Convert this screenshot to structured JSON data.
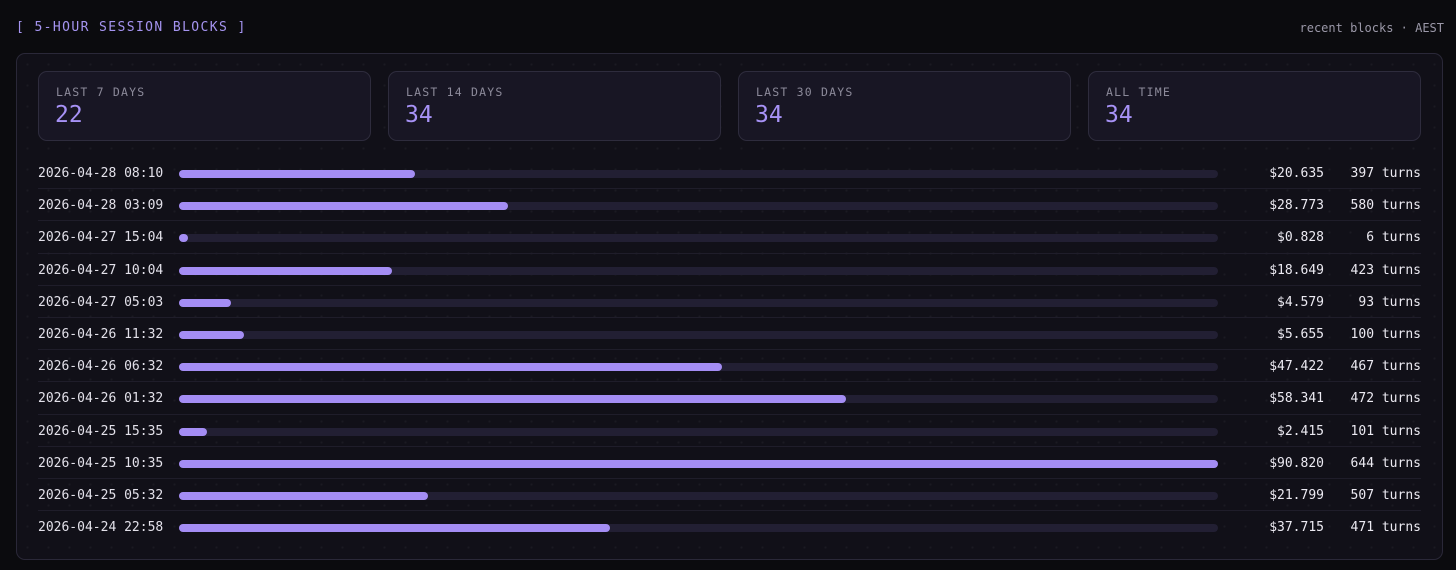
{
  "header": {
    "title": "[ 5-HOUR SESSION BLOCKS ]",
    "meta": "recent blocks · AEST"
  },
  "stats": [
    {
      "label": "LAST 7 DAYS",
      "value": "22"
    },
    {
      "label": "LAST 14 DAYS",
      "value": "34"
    },
    {
      "label": "LAST 30 DAYS",
      "value": "34"
    },
    {
      "label": "ALL TIME",
      "value": "34"
    }
  ],
  "colors": {
    "accent": "#a48df4",
    "track": "#221f33",
    "background": "#0b0b0e"
  },
  "bar_max_cost": 90.82,
  "blocks": [
    {
      "time": "2026-04-28 08:10",
      "cost": "$20.635",
      "cost_value": 20.635,
      "turns": "397 turns"
    },
    {
      "time": "2026-04-28 03:09",
      "cost": "$28.773",
      "cost_value": 28.773,
      "turns": "580 turns"
    },
    {
      "time": "2026-04-27 15:04",
      "cost": "$0.828",
      "cost_value": 0.828,
      "turns": "6 turns"
    },
    {
      "time": "2026-04-27 10:04",
      "cost": "$18.649",
      "cost_value": 18.649,
      "turns": "423 turns"
    },
    {
      "time": "2026-04-27 05:03",
      "cost": "$4.579",
      "cost_value": 4.579,
      "turns": "93 turns"
    },
    {
      "time": "2026-04-26 11:32",
      "cost": "$5.655",
      "cost_value": 5.655,
      "turns": "100 turns"
    },
    {
      "time": "2026-04-26 06:32",
      "cost": "$47.422",
      "cost_value": 47.422,
      "turns": "467 turns"
    },
    {
      "time": "2026-04-26 01:32",
      "cost": "$58.341",
      "cost_value": 58.341,
      "turns": "472 turns"
    },
    {
      "time": "2026-04-25 15:35",
      "cost": "$2.415",
      "cost_value": 2.415,
      "turns": "101 turns"
    },
    {
      "time": "2026-04-25 10:35",
      "cost": "$90.820",
      "cost_value": 90.82,
      "turns": "644 turns"
    },
    {
      "time": "2026-04-25 05:32",
      "cost": "$21.799",
      "cost_value": 21.799,
      "turns": "507 turns"
    },
    {
      "time": "2026-04-24 22:58",
      "cost": "$37.715",
      "cost_value": 37.715,
      "turns": "471 turns"
    }
  ]
}
